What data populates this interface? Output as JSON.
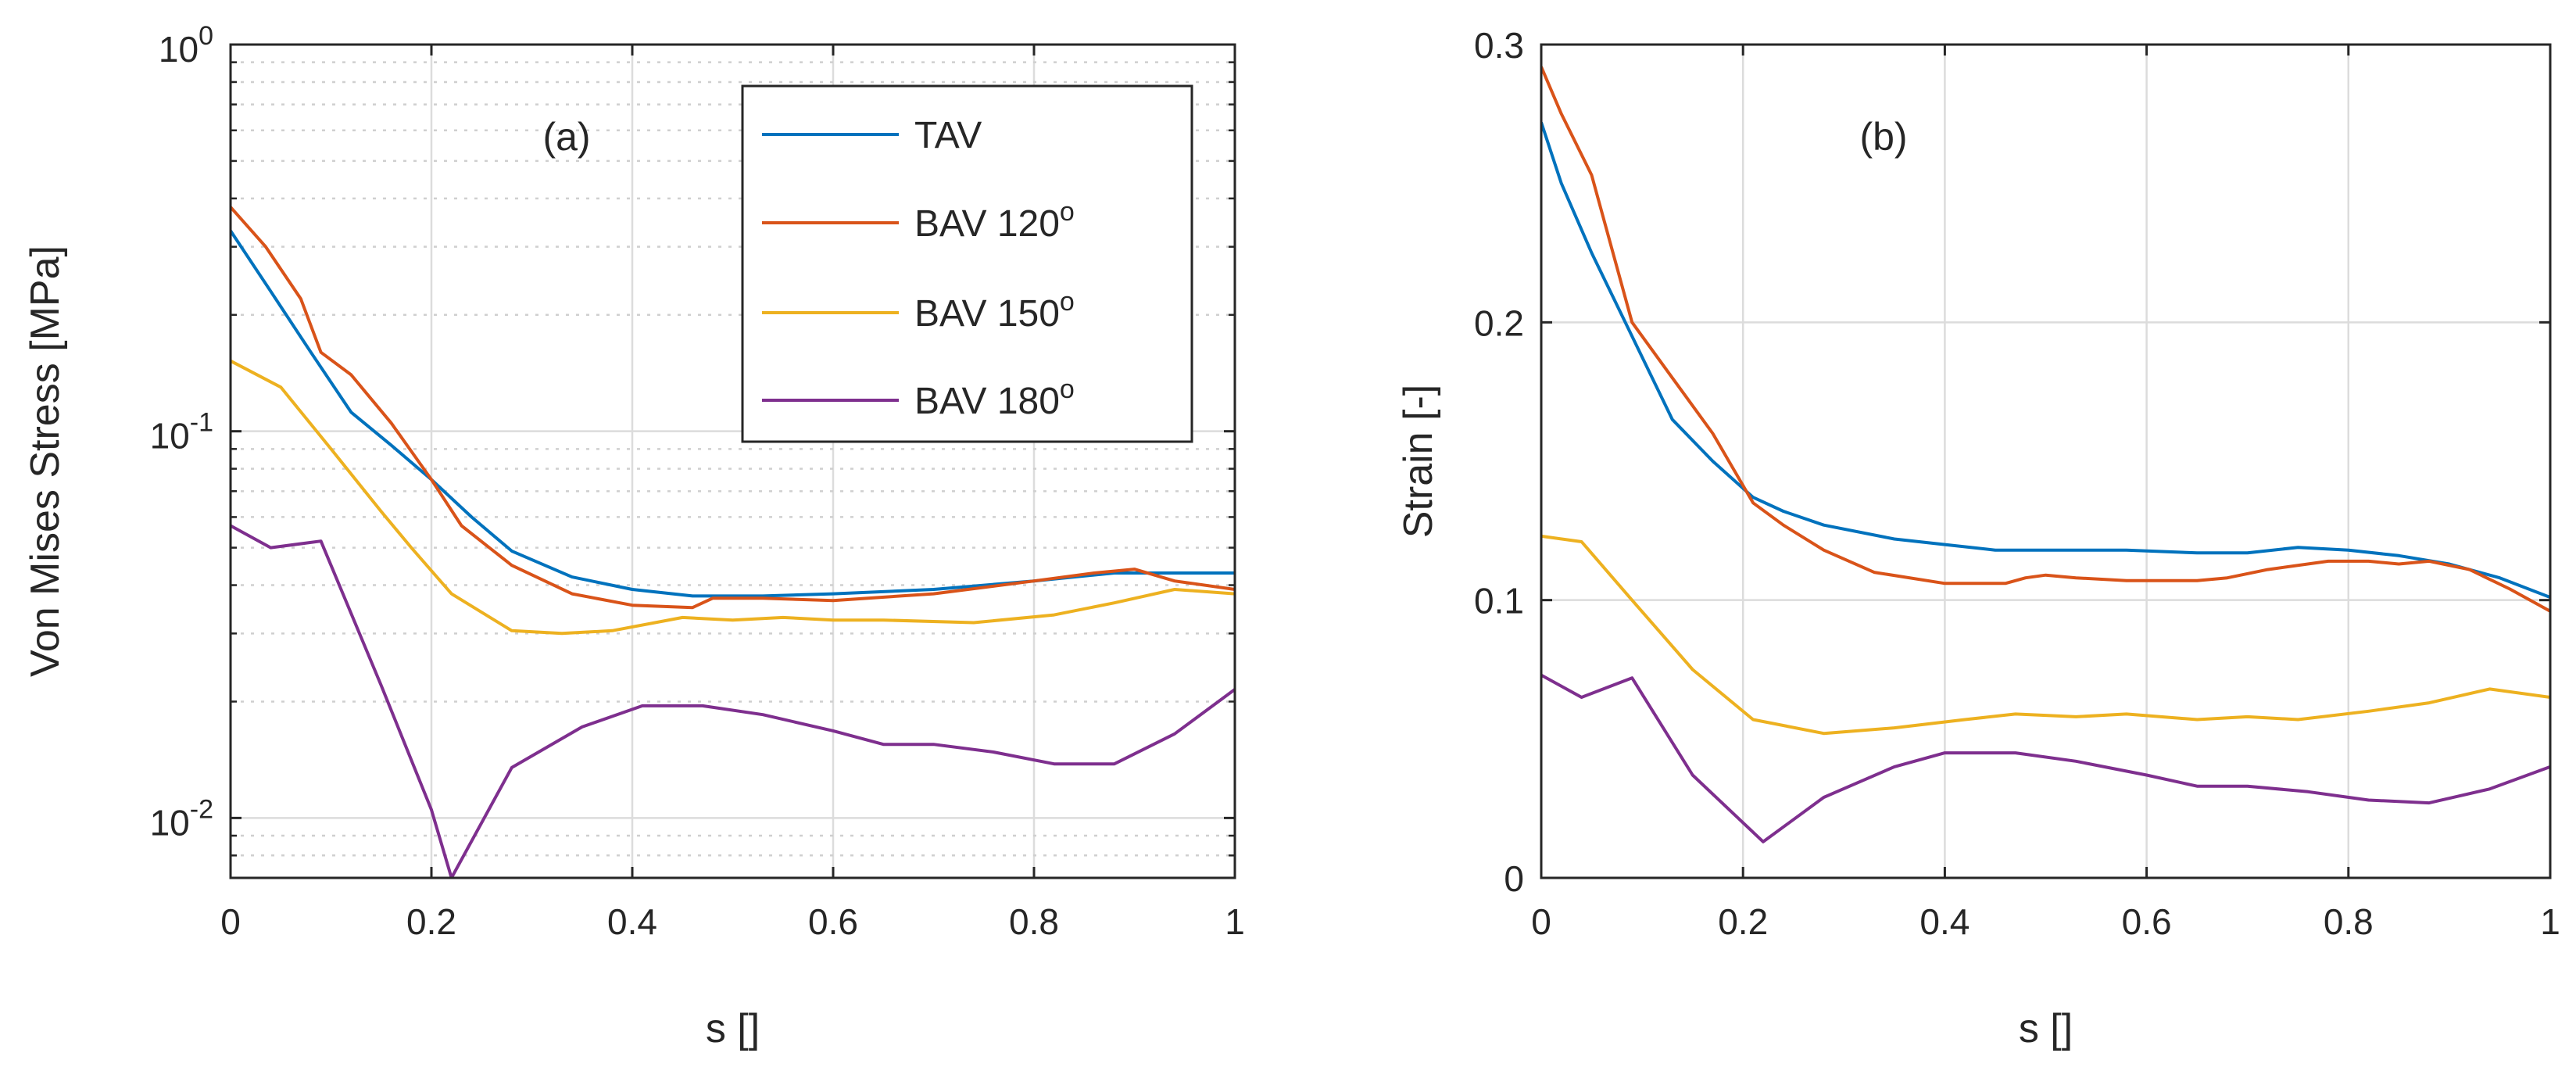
{
  "chart_data": [
    {
      "type": "line",
      "panel_label": "(a)",
      "xlabel": "s []",
      "ylabel": "Von Mises Stress [MPa]",
      "yscale": "log",
      "xlim": [
        0,
        1
      ],
      "ylim": [
        0.007,
        1
      ],
      "x_ticks": [
        "0",
        "0.2",
        "0.4",
        "0.6",
        "0.8",
        "1"
      ],
      "y_ticks": [
        {
          "base": "10",
          "exp": "-2",
          "value": 0.01
        },
        {
          "base": "10",
          "exp": "-1",
          "value": 0.1
        },
        {
          "base": "10",
          "exp": "0",
          "value": 1
        }
      ],
      "grid": true,
      "legend": {
        "position": "top-right",
        "entries": [
          {
            "label": "TAV",
            "sup": ""
          },
          {
            "label": "BAV 120",
            "sup": "o"
          },
          {
            "label": "BAV 150",
            "sup": "o"
          },
          {
            "label": "BAV 180",
            "sup": "o"
          }
        ]
      },
      "series": [
        {
          "name": "TAV",
          "color": "#0072BD",
          "x": [
            0,
            0.04,
            0.08,
            0.12,
            0.16,
            0.2,
            0.24,
            0.28,
            0.34,
            0.4,
            0.46,
            0.53,
            0.6,
            0.7,
            0.8,
            0.88,
            0.94,
            1.0
          ],
          "y": [
            0.33,
            0.23,
            0.16,
            0.112,
            0.092,
            0.075,
            0.06,
            0.049,
            0.042,
            0.039,
            0.0375,
            0.0375,
            0.038,
            0.039,
            0.041,
            0.043,
            0.043,
            0.043
          ]
        },
        {
          "name": "BAV 120",
          "color": "#D95319",
          "x": [
            0,
            0.035,
            0.07,
            0.09,
            0.12,
            0.16,
            0.2,
            0.23,
            0.28,
            0.34,
            0.4,
            0.46,
            0.48,
            0.53,
            0.6,
            0.7,
            0.8,
            0.86,
            0.9,
            0.94,
            1.0
          ],
          "y": [
            0.38,
            0.3,
            0.22,
            0.16,
            0.14,
            0.105,
            0.075,
            0.057,
            0.045,
            0.038,
            0.0355,
            0.035,
            0.037,
            0.037,
            0.0365,
            0.038,
            0.041,
            0.043,
            0.044,
            0.041,
            0.039
          ]
        },
        {
          "name": "BAV 150",
          "color": "#EDB120",
          "x": [
            0,
            0.05,
            0.1,
            0.15,
            0.18,
            0.22,
            0.28,
            0.33,
            0.38,
            0.45,
            0.5,
            0.55,
            0.6,
            0.65,
            0.74,
            0.82,
            0.88,
            0.94,
            1.0
          ],
          "y": [
            0.152,
            0.13,
            0.09,
            0.062,
            0.05,
            0.038,
            0.0305,
            0.03,
            0.0305,
            0.033,
            0.0325,
            0.033,
            0.0325,
            0.0325,
            0.032,
            0.0335,
            0.036,
            0.039,
            0.038
          ]
        },
        {
          "name": "BAV 180",
          "color": "#7E2F8E",
          "x": [
            0,
            0.04,
            0.09,
            0.15,
            0.2,
            0.22,
            0.28,
            0.35,
            0.41,
            0.47,
            0.53,
            0.6,
            0.65,
            0.7,
            0.76,
            0.82,
            0.88,
            0.94,
            1.0
          ],
          "y": [
            0.057,
            0.05,
            0.052,
            0.022,
            0.0105,
            0.007,
            0.0135,
            0.0172,
            0.0195,
            0.0195,
            0.0185,
            0.0168,
            0.0155,
            0.0155,
            0.0148,
            0.0138,
            0.0138,
            0.0165,
            0.0215
          ]
        }
      ]
    },
    {
      "type": "line",
      "panel_label": "(b)",
      "xlabel": "s []",
      "ylabel": "Strain [-]",
      "yscale": "linear",
      "xlim": [
        0,
        1
      ],
      "ylim": [
        0,
        0.3
      ],
      "x_ticks": [
        "0",
        "0.2",
        "0.4",
        "0.6",
        "0.8",
        "1"
      ],
      "y_ticks": [
        "0",
        "0.1",
        "0.2",
        "0.3"
      ],
      "grid": true,
      "series": [
        {
          "name": "TAV",
          "color": "#0072BD",
          "x": [
            0,
            0.02,
            0.05,
            0.09,
            0.13,
            0.17,
            0.21,
            0.24,
            0.28,
            0.35,
            0.4,
            0.45,
            0.5,
            0.58,
            0.65,
            0.7,
            0.75,
            0.8,
            0.85,
            0.9,
            0.95,
            1.0
          ],
          "y": [
            0.272,
            0.25,
            0.225,
            0.195,
            0.165,
            0.15,
            0.137,
            0.132,
            0.127,
            0.122,
            0.12,
            0.118,
            0.118,
            0.118,
            0.117,
            0.117,
            0.119,
            0.118,
            0.116,
            0.113,
            0.108,
            0.101
          ]
        },
        {
          "name": "BAV 120",
          "color": "#D95319",
          "x": [
            0,
            0.02,
            0.05,
            0.09,
            0.13,
            0.17,
            0.21,
            0.24,
            0.28,
            0.33,
            0.4,
            0.46,
            0.48,
            0.5,
            0.53,
            0.58,
            0.65,
            0.68,
            0.72,
            0.78,
            0.82,
            0.85,
            0.88,
            0.92,
            0.96,
            1.0
          ],
          "y": [
            0.292,
            0.275,
            0.253,
            0.2,
            0.18,
            0.16,
            0.135,
            0.127,
            0.118,
            0.11,
            0.106,
            0.106,
            0.108,
            0.109,
            0.108,
            0.107,
            0.107,
            0.108,
            0.111,
            0.114,
            0.114,
            0.113,
            0.114,
            0.111,
            0.104,
            0.096
          ]
        },
        {
          "name": "BAV 150",
          "color": "#EDB120",
          "x": [
            0,
            0.04,
            0.09,
            0.15,
            0.21,
            0.28,
            0.35,
            0.42,
            0.47,
            0.53,
            0.58,
            0.65,
            0.7,
            0.75,
            0.82,
            0.88,
            0.94,
            1.0
          ],
          "y": [
            0.123,
            0.121,
            0.1,
            0.075,
            0.057,
            0.052,
            0.054,
            0.057,
            0.059,
            0.058,
            0.059,
            0.057,
            0.058,
            0.057,
            0.06,
            0.063,
            0.068,
            0.065
          ]
        },
        {
          "name": "BAV 180",
          "color": "#7E2F8E",
          "x": [
            0,
            0.04,
            0.09,
            0.15,
            0.22,
            0.28,
            0.35,
            0.4,
            0.47,
            0.53,
            0.6,
            0.65,
            0.7,
            0.76,
            0.82,
            0.88,
            0.94,
            1.0
          ],
          "y": [
            0.073,
            0.065,
            0.072,
            0.037,
            0.013,
            0.029,
            0.04,
            0.045,
            0.045,
            0.042,
            0.037,
            0.033,
            0.033,
            0.031,
            0.028,
            0.027,
            0.032,
            0.04
          ]
        }
      ]
    }
  ]
}
